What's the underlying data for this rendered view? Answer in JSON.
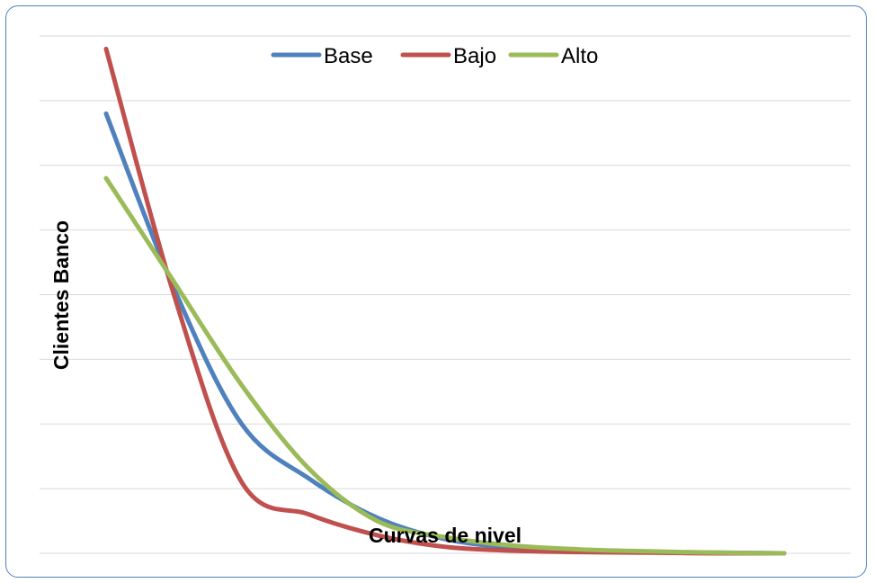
{
  "chart_data": {
    "type": "line",
    "title": "",
    "xlabel": "Curvas de nivel",
    "ylabel": "Clientes Banco",
    "smooth": true,
    "grid": true,
    "legend_position": "top",
    "x": [
      1,
      2,
      3,
      4,
      5,
      6,
      7,
      8,
      9,
      10,
      11
    ],
    "ylim": [
      0,
      8
    ],
    "series": [
      {
        "name": "Base",
        "color": "#4f81bd",
        "values": [
          6.8,
          4.1,
          2.0,
          1.15,
          0.55,
          0.22,
          0.09,
          0.04,
          0.02,
          0.01,
          0.0
        ]
      },
      {
        "name": "Bajo",
        "color": "#c0504d",
        "values": [
          7.8,
          4.0,
          1.1,
          0.6,
          0.28,
          0.1,
          0.04,
          0.02,
          0.01,
          0.0,
          0.0
        ]
      },
      {
        "name": "Alto",
        "color": "#9bbb59",
        "values": [
          5.8,
          4.2,
          2.6,
          1.3,
          0.5,
          0.25,
          0.12,
          0.06,
          0.03,
          0.01,
          0.0
        ]
      }
    ]
  }
}
